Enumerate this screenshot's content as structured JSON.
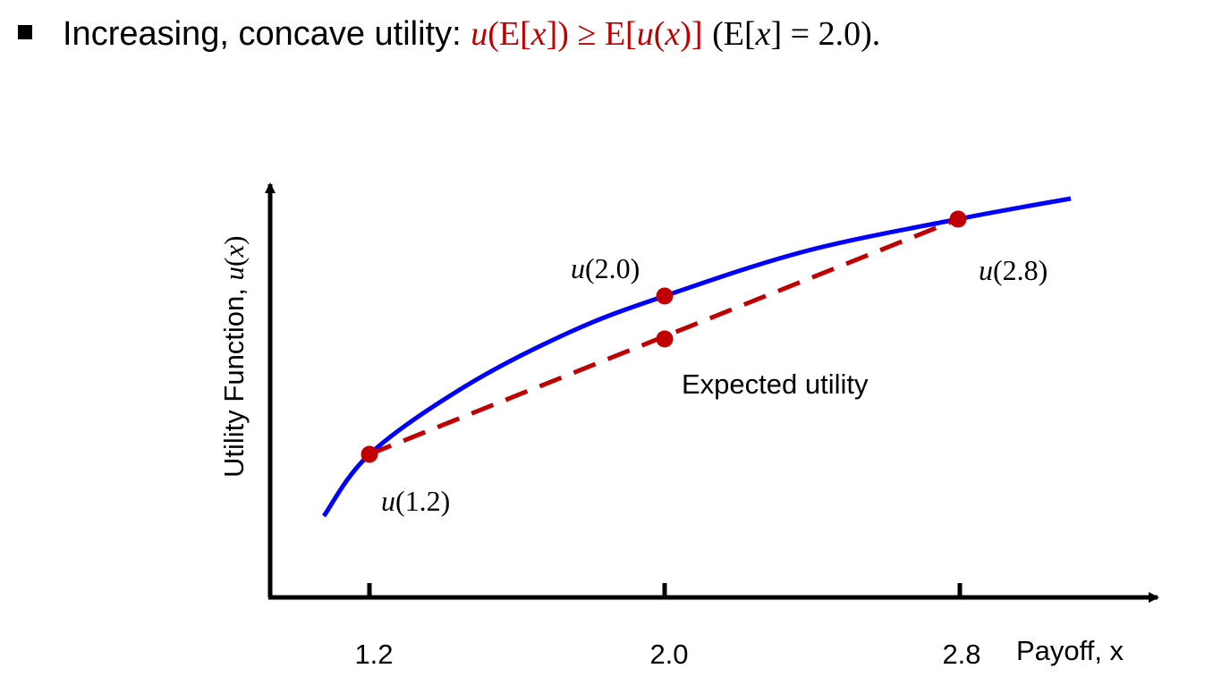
{
  "headline": {
    "bullet_icon": "square-bullet-icon",
    "lead": "Increasing, concave utility:",
    "inequality": {
      "lhs_fn": "u",
      "lhs_open": "(E[",
      "lhs_var": "x",
      "lhs_close": "])",
      "relation": "≥",
      "rhs_open": "E[",
      "rhs_fn": "u",
      "rhs_mid": "(",
      "rhs_var": "x",
      "rhs_close": ")]",
      "color": "#c00000"
    },
    "note": {
      "open": "(E[",
      "var": "x",
      "rest": "] = 2.0)."
    }
  },
  "chart_data": {
    "type": "line",
    "xlabel": "Payoff, x",
    "ylabel": {
      "text": "Utility Function, ",
      "fn": "u",
      "open": "(",
      "var": "x",
      "close": ")"
    },
    "x_ticks": [
      "1.2",
      "2.0",
      "2.8"
    ],
    "utility_curve_color": "#0000ff",
    "expected_utility_line_color": "#c00000",
    "point_color": "#c00000",
    "points": [
      {
        "x": 1.2,
        "label_fn": "u",
        "label_arg": "(1.2)",
        "on": "curve"
      },
      {
        "x": 2.0,
        "label_fn": "u",
        "label_arg": "(2.0)",
        "on": "curve"
      },
      {
        "x": 2.8,
        "label_fn": "u",
        "label_arg": "(2.8)",
        "on": "curve"
      },
      {
        "x": 2.0,
        "label": "Expected utility",
        "on": "chord"
      }
    ],
    "series": [
      {
        "style": "solid",
        "kind": "concave utility curve u(x)"
      },
      {
        "style": "dashed",
        "kind": "chord between u(1.2) and u(2.8)"
      }
    ]
  }
}
